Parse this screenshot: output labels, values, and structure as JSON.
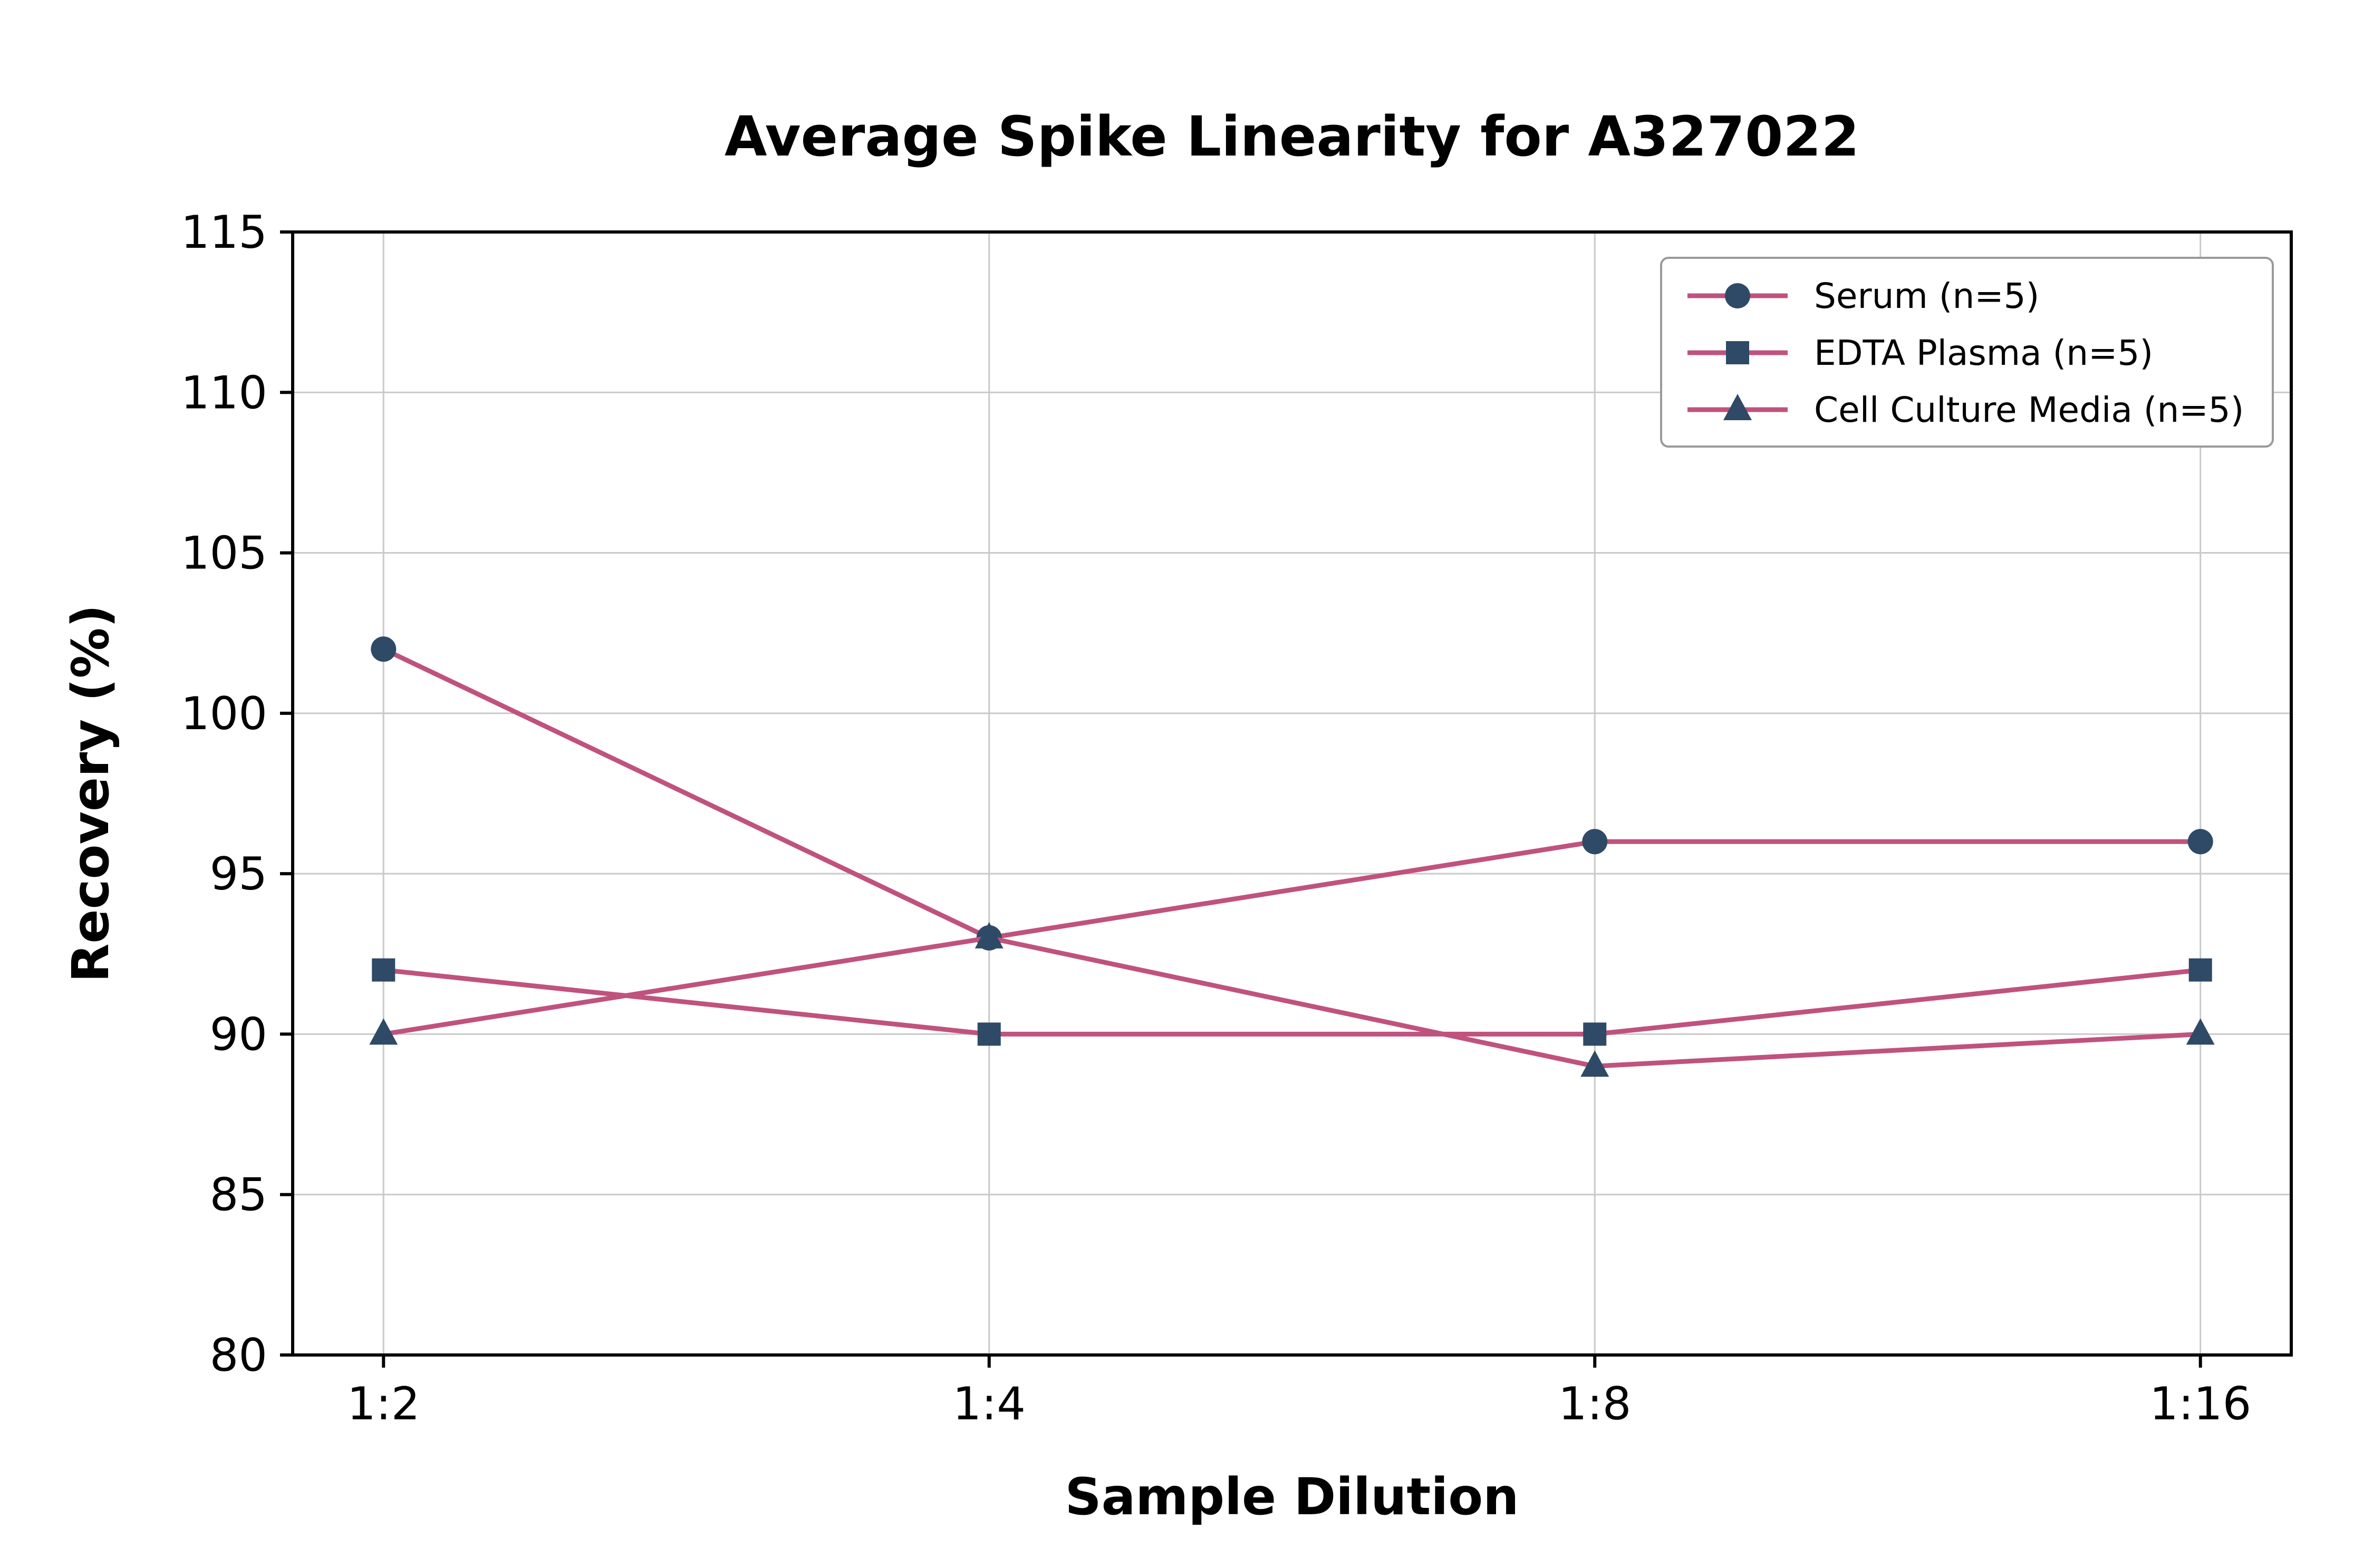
{
  "chart_data": {
    "type": "line",
    "title": "Average Spike Linearity for A327022",
    "xlabel": "Sample Dilution",
    "ylabel": "Recovery (%)",
    "categories": [
      "1:2",
      "1:4",
      "1:8",
      "1:16"
    ],
    "y_ticks": [
      80,
      85,
      90,
      95,
      100,
      105,
      110,
      115
    ],
    "ylim": [
      80,
      115
    ],
    "grid": true,
    "legend_position": "upper right",
    "line_color": "#c0527e",
    "marker_color": "#2e4a66",
    "grid_color": "#c9c9c9",
    "spine_color": "#000000",
    "series": [
      {
        "name": "Serum (n=5)",
        "marker": "circle",
        "values": [
          102,
          93,
          96,
          96
        ]
      },
      {
        "name": "EDTA Plasma (n=5)",
        "marker": "square",
        "values": [
          92,
          90,
          90,
          92
        ]
      },
      {
        "name": "Cell Culture Media (n=5)",
        "marker": "triangle",
        "values": [
          90,
          93,
          89,
          90
        ]
      }
    ]
  }
}
